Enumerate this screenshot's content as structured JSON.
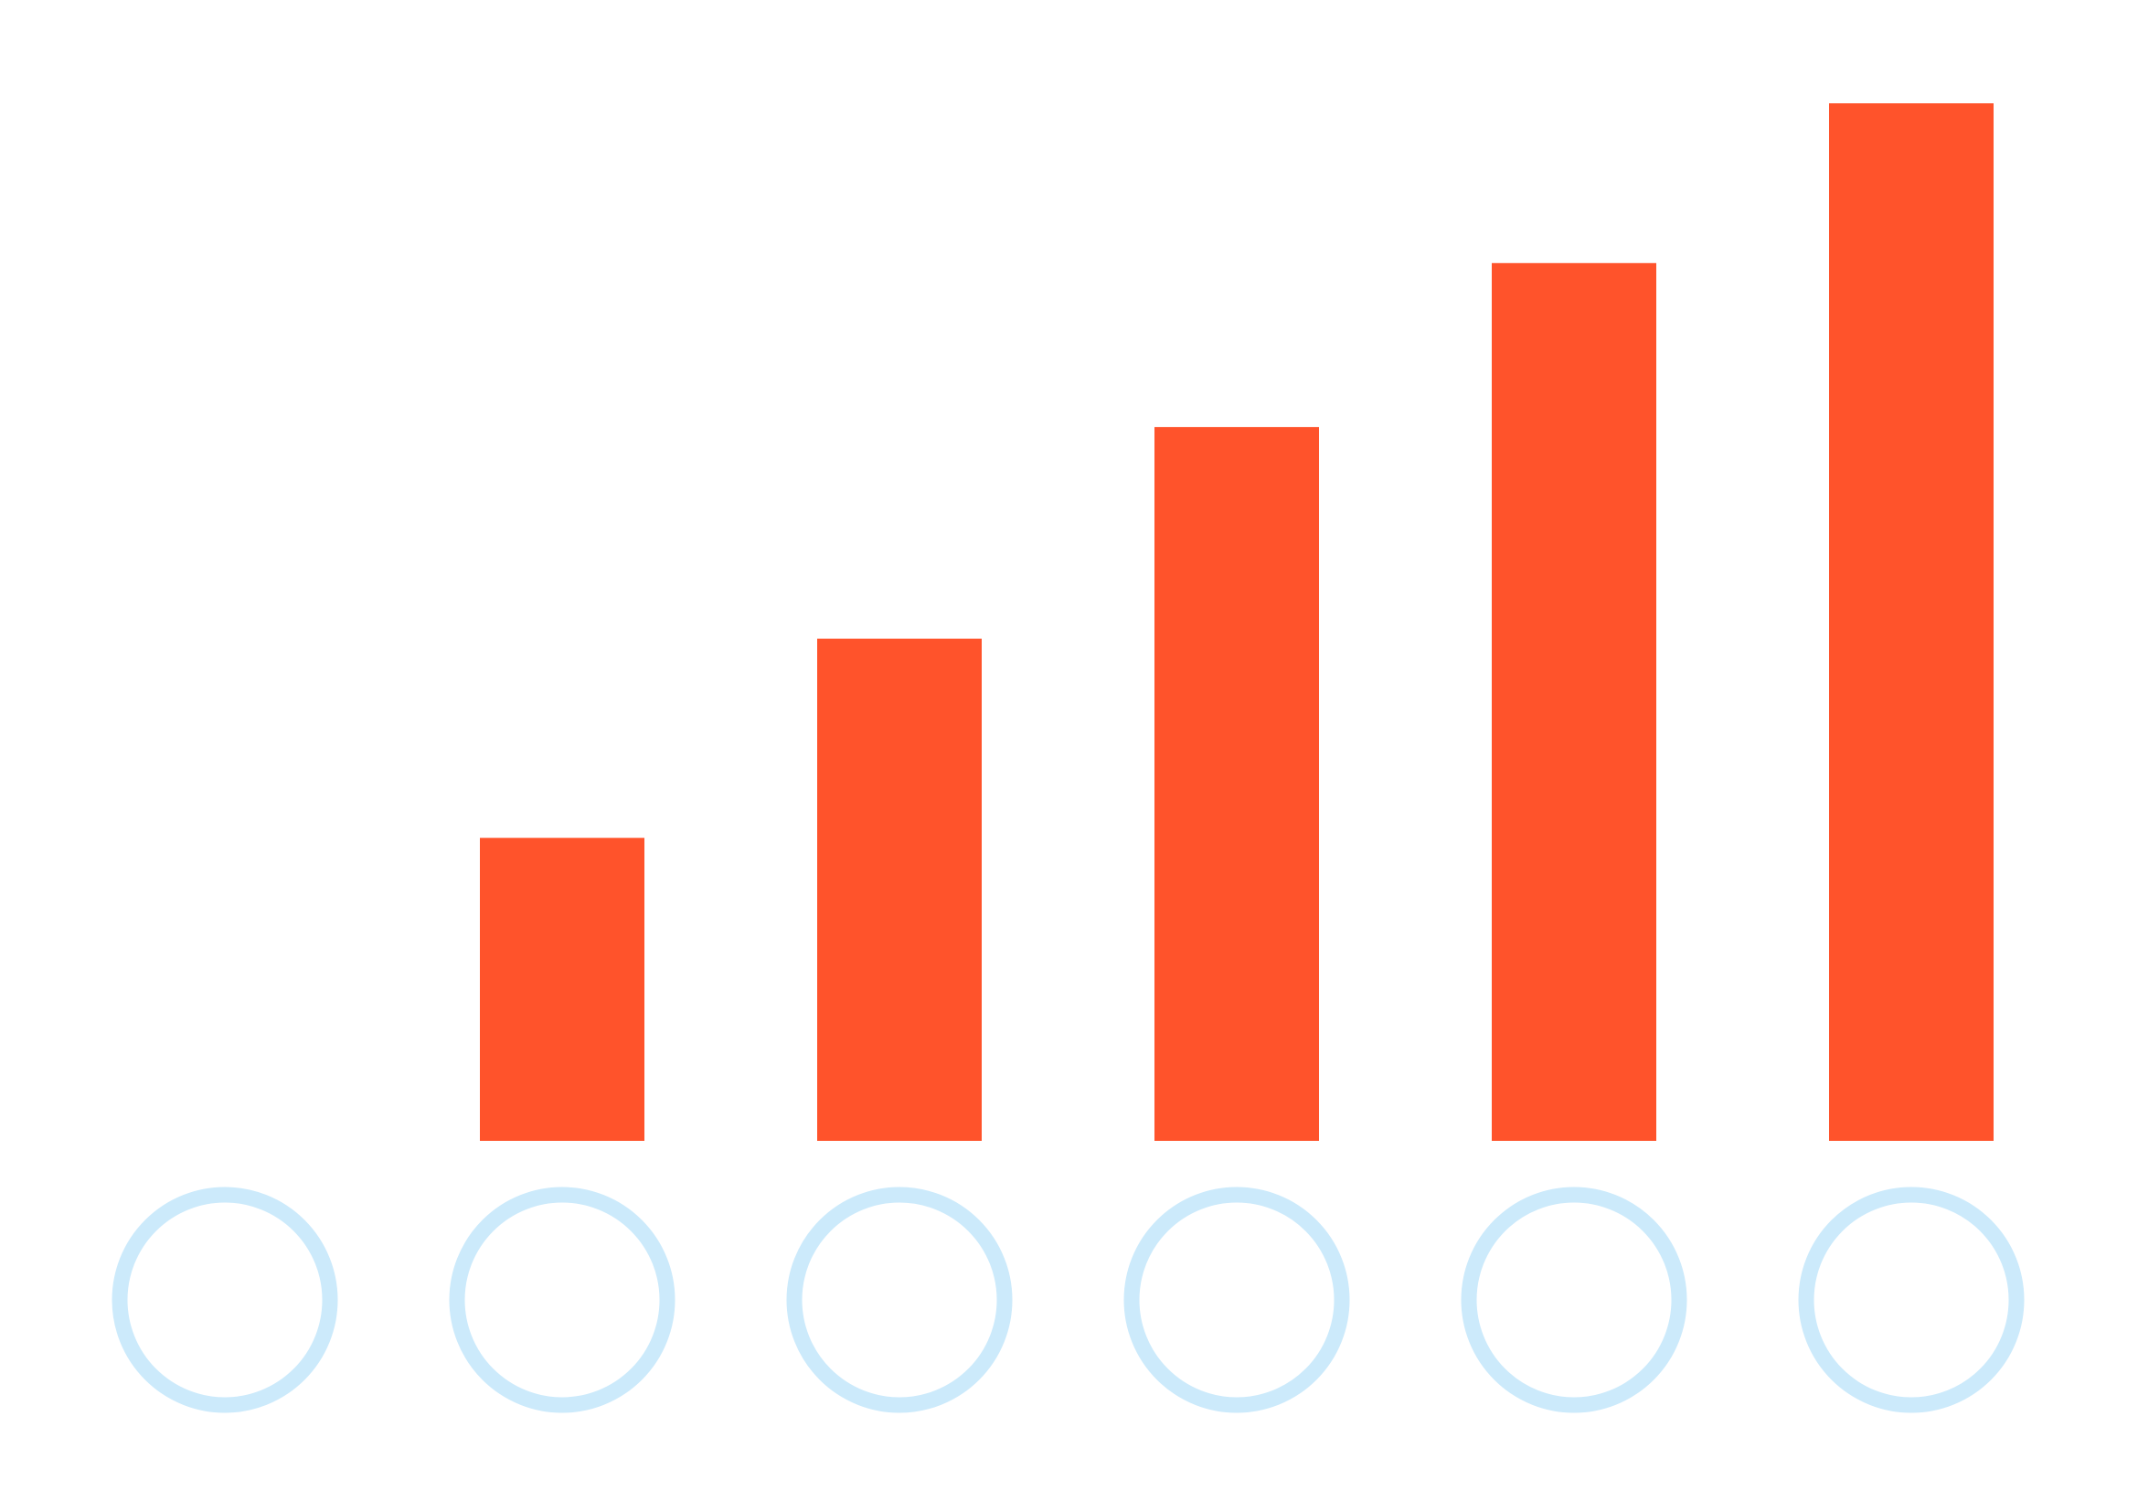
{
  "chart_data": {
    "type": "bar",
    "categories": [
      "",
      "",
      "",
      "",
      "",
      ""
    ],
    "values": [
      0,
      29.2,
      48.4,
      68.8,
      84.6,
      100
    ],
    "ylim": [
      0,
      100
    ],
    "grid": false,
    "title": "",
    "xlabel": "",
    "ylabel": "",
    "bar_color": "#ff532b",
    "marker_color": "#cceafb",
    "marker_icon": "circle-outline-icon"
  }
}
